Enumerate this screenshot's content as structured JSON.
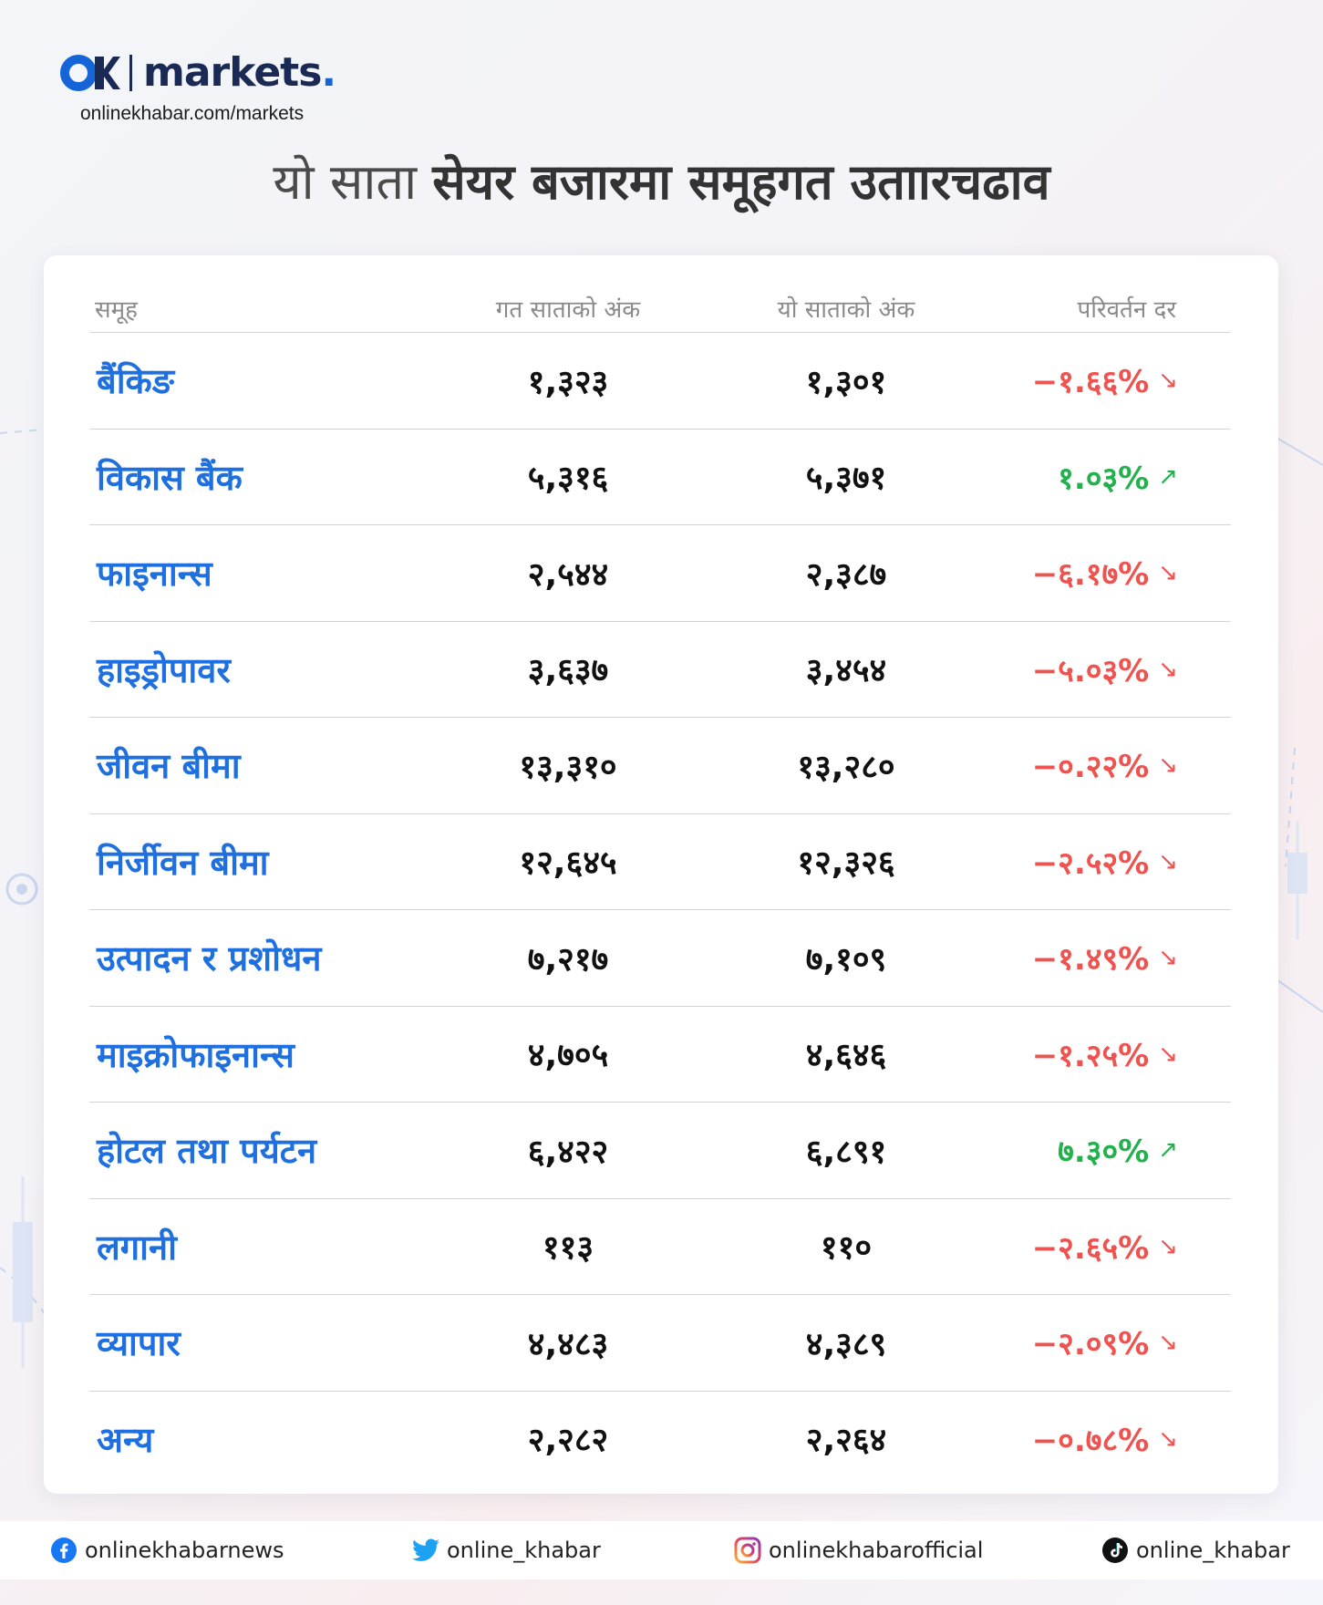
{
  "brand": {
    "logo_mark": "OK",
    "name": "markets",
    "name_dot": ".",
    "url": "onlinekhabar.com/markets"
  },
  "title": {
    "light": "यो साता ",
    "bold": "सेयर बजारमा समूहगत उताारचढाव"
  },
  "table": {
    "headers": [
      "समूह",
      "गत साताको अंक",
      "यो साताको अंक",
      "परिवर्तन दर"
    ],
    "rows": [
      {
        "name": "बैंकिङ",
        "prev": "१,३२३",
        "curr": "१,३०१",
        "change": "−१.६६%",
        "dir": "down"
      },
      {
        "name": "विकास बैंक",
        "prev": "५,३१६",
        "curr": "५,३७१",
        "change": "१.०३%",
        "dir": "up"
      },
      {
        "name": "फाइनान्स",
        "prev": "२,५४४",
        "curr": "२,३८७",
        "change": "−६.१७%",
        "dir": "down"
      },
      {
        "name": "हाइड्रोपावर",
        "prev": "३,६३७",
        "curr": "३,४५४",
        "change": "−५.०३%",
        "dir": "down"
      },
      {
        "name": "जीवन बीमा",
        "prev": "१३,३१०",
        "curr": "१३,२८०",
        "change": "−०.२२%",
        "dir": "down"
      },
      {
        "name": "निर्जीवन बीमा",
        "prev": "१२,६४५",
        "curr": "१२,३२६",
        "change": "−२.५२%",
        "dir": "down"
      },
      {
        "name": "उत्पादन र प्रशोधन",
        "prev": "७,२१७",
        "curr": "७,१०९",
        "change": "−१.४९%",
        "dir": "down"
      },
      {
        "name": "माइक्रोफाइनान्स",
        "prev": "४,७०५",
        "curr": "४,६४६",
        "change": "−१.२५%",
        "dir": "down"
      },
      {
        "name": "होटल तथा पर्यटन",
        "prev": "६,४२२",
        "curr": "६,८९१",
        "change": "७.३०%",
        "dir": "up"
      },
      {
        "name": "लगानी",
        "prev": "११३",
        "curr": "११०",
        "change": "−२.६५%",
        "dir": "down"
      },
      {
        "name": "व्यापार",
        "prev": "४,४८३",
        "curr": "४,३८९",
        "change": "−२.०९%",
        "dir": "down"
      },
      {
        "name": "अन्य",
        "prev": "२,२८२",
        "curr": "२,२६४",
        "change": "−०.७८%",
        "dir": "down"
      }
    ]
  },
  "arrows": {
    "down": "↘",
    "up": "↗"
  },
  "colors": {
    "up": "#22b14c",
    "down": "#ef5350",
    "name": "#1e6fe0",
    "brand": "#1565d8",
    "navy": "#1a2a55"
  },
  "footer": {
    "facebook": {
      "icon": "facebook-icon",
      "handle": "onlinekhabarnews"
    },
    "twitter": {
      "icon": "twitter-icon",
      "handle": "online_khabar"
    },
    "instagram": {
      "icon": "instagram-icon",
      "handle": "onlinekhabarofficial"
    },
    "tiktok": {
      "icon": "tiktok-icon",
      "handle": "online_khabar"
    }
  }
}
